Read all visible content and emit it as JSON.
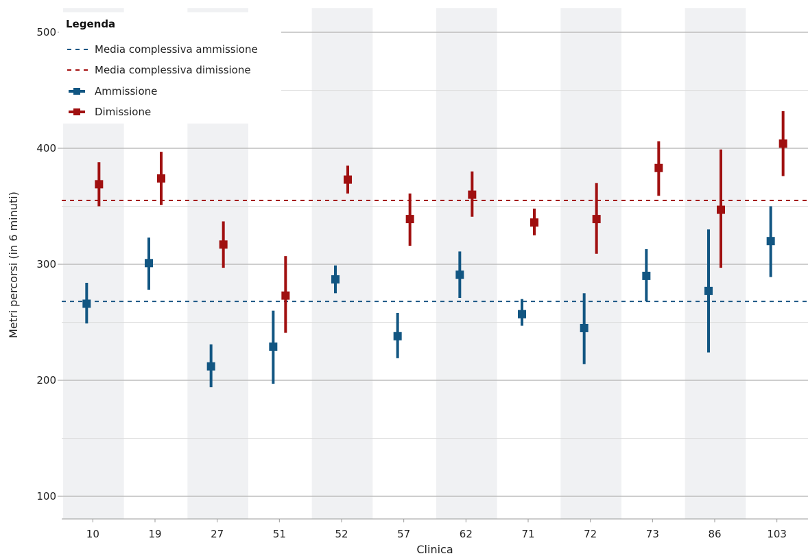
{
  "chart_data": {
    "type": "scatter",
    "title": "",
    "xlabel": "Clinica",
    "ylabel": "Metri percorsi (in 6 minuti)",
    "categories": [
      "10",
      "19",
      "27",
      "51",
      "52",
      "57",
      "62",
      "71",
      "72",
      "73",
      "86",
      "103"
    ],
    "ylim": [
      80,
      520
    ],
    "yticks": [
      100,
      200,
      300,
      400,
      500
    ],
    "grid": true,
    "legend": {
      "title": "Legenda",
      "position": "top-left",
      "entries": [
        "Media complessiva ammissione",
        "Media complessiva dimissione",
        "Ammissione",
        "Dimissione"
      ]
    },
    "reference_lines": [
      {
        "name": "Media complessiva ammissione",
        "value": 268,
        "color": "#1a5684",
        "style": "dashed"
      },
      {
        "name": "Media complessiva dimissione",
        "value": 355,
        "color": "#a50f0f",
        "style": "dashed"
      }
    ],
    "series": [
      {
        "name": "Ammissione",
        "color": "#125682",
        "values": [
          266,
          301,
          212,
          229,
          287,
          238,
          291,
          257,
          245,
          290,
          277,
          320
        ],
        "lower": [
          249,
          278,
          194,
          197,
          275,
          219,
          271,
          247,
          214,
          268,
          224,
          289
        ],
        "upper": [
          284,
          323,
          231,
          260,
          299,
          258,
          311,
          270,
          275,
          313,
          330,
          350
        ]
      },
      {
        "name": "Dimissione",
        "color": "#a01010",
        "values": [
          369,
          374,
          317,
          273,
          373,
          339,
          360,
          336,
          339,
          383,
          347,
          404
        ],
        "lower": [
          350,
          351,
          297,
          241,
          361,
          316,
          341,
          325,
          309,
          359,
          297,
          376
        ],
        "upper": [
          388,
          397,
          337,
          307,
          385,
          361,
          380,
          348,
          370,
          406,
          399,
          432
        ]
      }
    ]
  }
}
